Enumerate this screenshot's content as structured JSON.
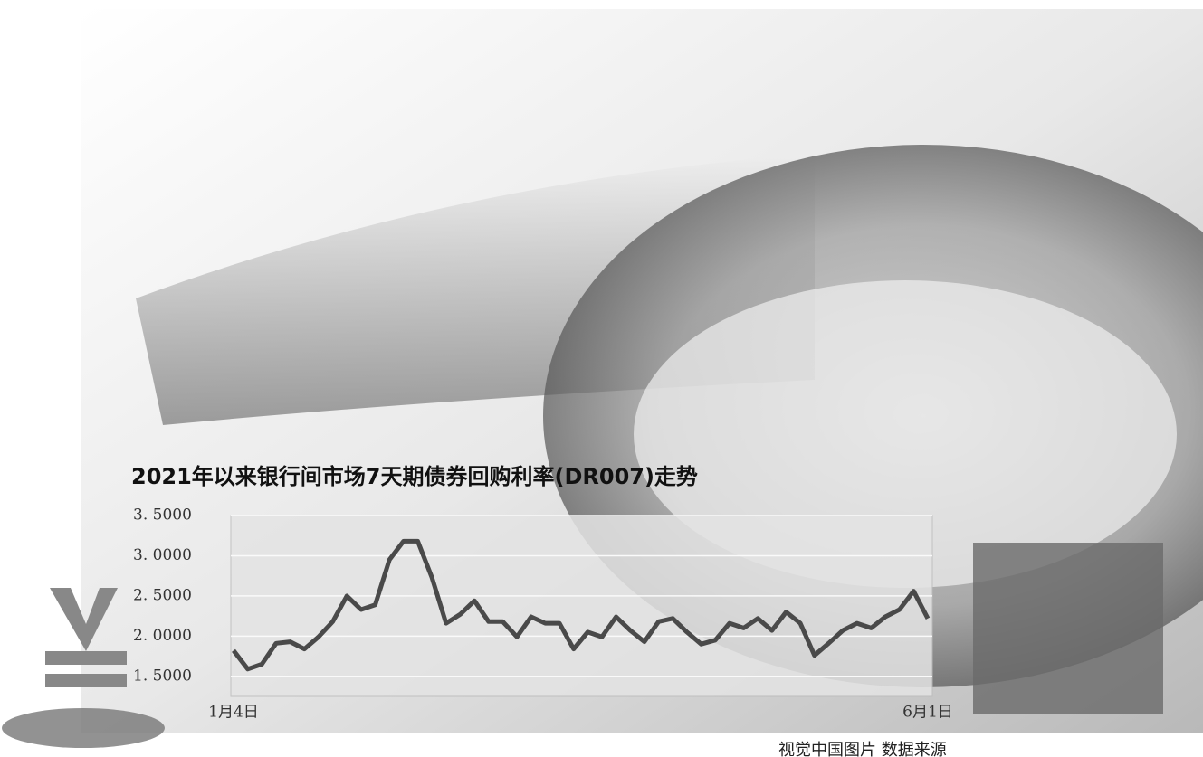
{
  "chart_data": {
    "type": "line",
    "title": "2021年以来银行间市场7天期债券回购利率(DR007)走势",
    "categories": [
      "1月4日",
      null,
      null,
      null,
      null,
      null,
      null,
      null,
      null,
      null,
      null,
      null,
      null,
      null,
      null,
      null,
      null,
      null,
      null,
      null,
      null,
      null,
      null,
      null,
      null,
      null,
      null,
      null,
      null,
      null,
      null,
      null,
      null,
      null,
      null,
      null,
      null,
      null,
      null,
      null,
      null,
      null,
      null,
      null,
      null,
      null,
      null,
      null,
      null,
      "6月1日"
    ],
    "series": [
      {
        "name": "DR007",
        "color": "#4a4a4a",
        "values": [
          1.82,
          1.59,
          1.65,
          1.91,
          1.93,
          1.84,
          1.99,
          2.18,
          2.5,
          2.33,
          2.39,
          2.95,
          3.18,
          3.18,
          2.73,
          2.16,
          2.27,
          2.44,
          2.18,
          2.18,
          1.99,
          2.24,
          2.16,
          2.16,
          1.84,
          2.05,
          1.99,
          2.24,
          2.07,
          1.93,
          2.18,
          2.22,
          2.05,
          1.9,
          1.95,
          2.16,
          2.1,
          2.22,
          2.07,
          2.3,
          2.16,
          1.76,
          1.91,
          2.07,
          2.16,
          2.1,
          2.24,
          2.33,
          2.56,
          2.22
        ]
      }
    ],
    "ylim": [
      1.25,
      3.5
    ],
    "yticks": [
      {
        "value": 1.5,
        "label": "1. 5000"
      },
      {
        "value": 2,
        "label": "2. 0000"
      },
      {
        "value": 2.5,
        "label": "2. 5000"
      },
      {
        "value": 3,
        "label": "3. 0000"
      },
      {
        "value": 3.5,
        "label": "3. 5000"
      }
    ],
    "grid": true,
    "source_note": "视觉中国图片 数据来源"
  }
}
